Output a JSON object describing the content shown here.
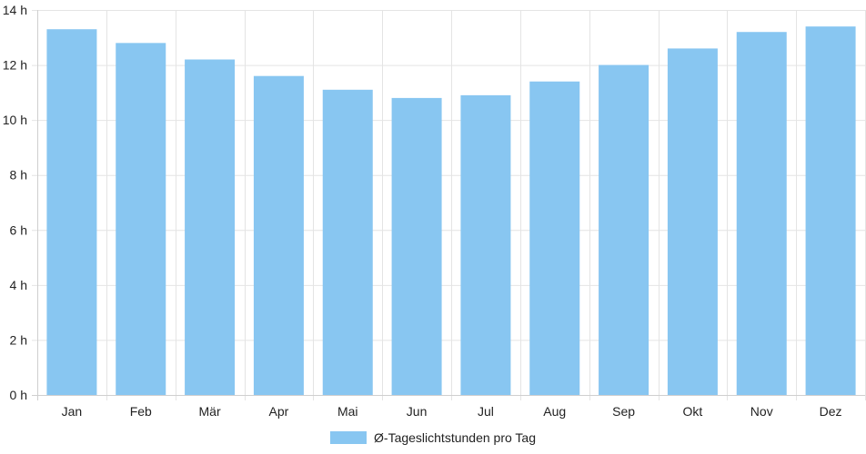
{
  "chart_data": {
    "type": "bar",
    "categories": [
      "Jan",
      "Feb",
      "Mär",
      "Apr",
      "Mai",
      "Jun",
      "Jul",
      "Aug",
      "Sep",
      "Okt",
      "Nov",
      "Dez"
    ],
    "series": [
      {
        "name": "Ø-Tageslichtstunden pro Tag",
        "values": [
          13.3,
          12.8,
          12.2,
          11.6,
          11.1,
          10.8,
          10.9,
          11.4,
          12.0,
          12.6,
          13.2,
          13.4
        ],
        "color": "#88c6f1"
      }
    ],
    "ylim": [
      0,
      14
    ],
    "yticks": [
      0,
      2,
      4,
      6,
      8,
      10,
      12,
      14
    ],
    "ytick_labels": [
      "0 h",
      "2 h",
      "4 h",
      "6 h",
      "8 h",
      "10 h",
      "12 h",
      "14 h"
    ],
    "grid": true,
    "legend_position": "bottom-center",
    "title": "",
    "xlabel": "",
    "ylabel": ""
  }
}
